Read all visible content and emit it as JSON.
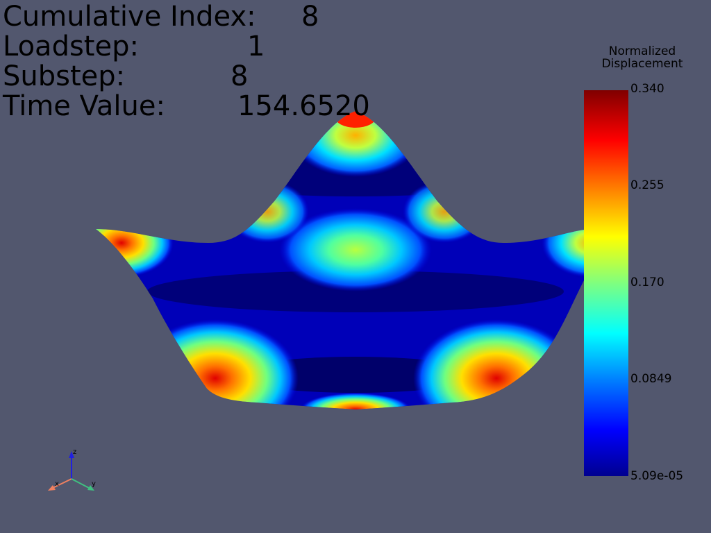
{
  "info": [
    {
      "label": "Cumulative Index:",
      "value": "8"
    },
    {
      "label": "Loadstep:",
      "value": "1"
    },
    {
      "label": "Substep:",
      "value": "8"
    },
    {
      "label": "Time Value:",
      "value": "154.6520"
    }
  ],
  "colorbar": {
    "title_line1": "Normalized",
    "title_line2": "Displacement",
    "ticks": [
      "0.340",
      "0.255",
      "0.170",
      "0.0849",
      "5.09e-05"
    ],
    "colors": [
      "#800000",
      "#ff0000",
      "#ff7a00",
      "#ffff00",
      "#7fff7f",
      "#00ffff",
      "#0080ff",
      "#0000ff",
      "#00008f"
    ]
  },
  "axes": {
    "x": "x",
    "y": "y",
    "z": "z"
  },
  "colors": {
    "background": "#52576e",
    "x_axis": "#f08060",
    "y_axis": "#40c080",
    "z_axis": "#2020e0"
  }
}
